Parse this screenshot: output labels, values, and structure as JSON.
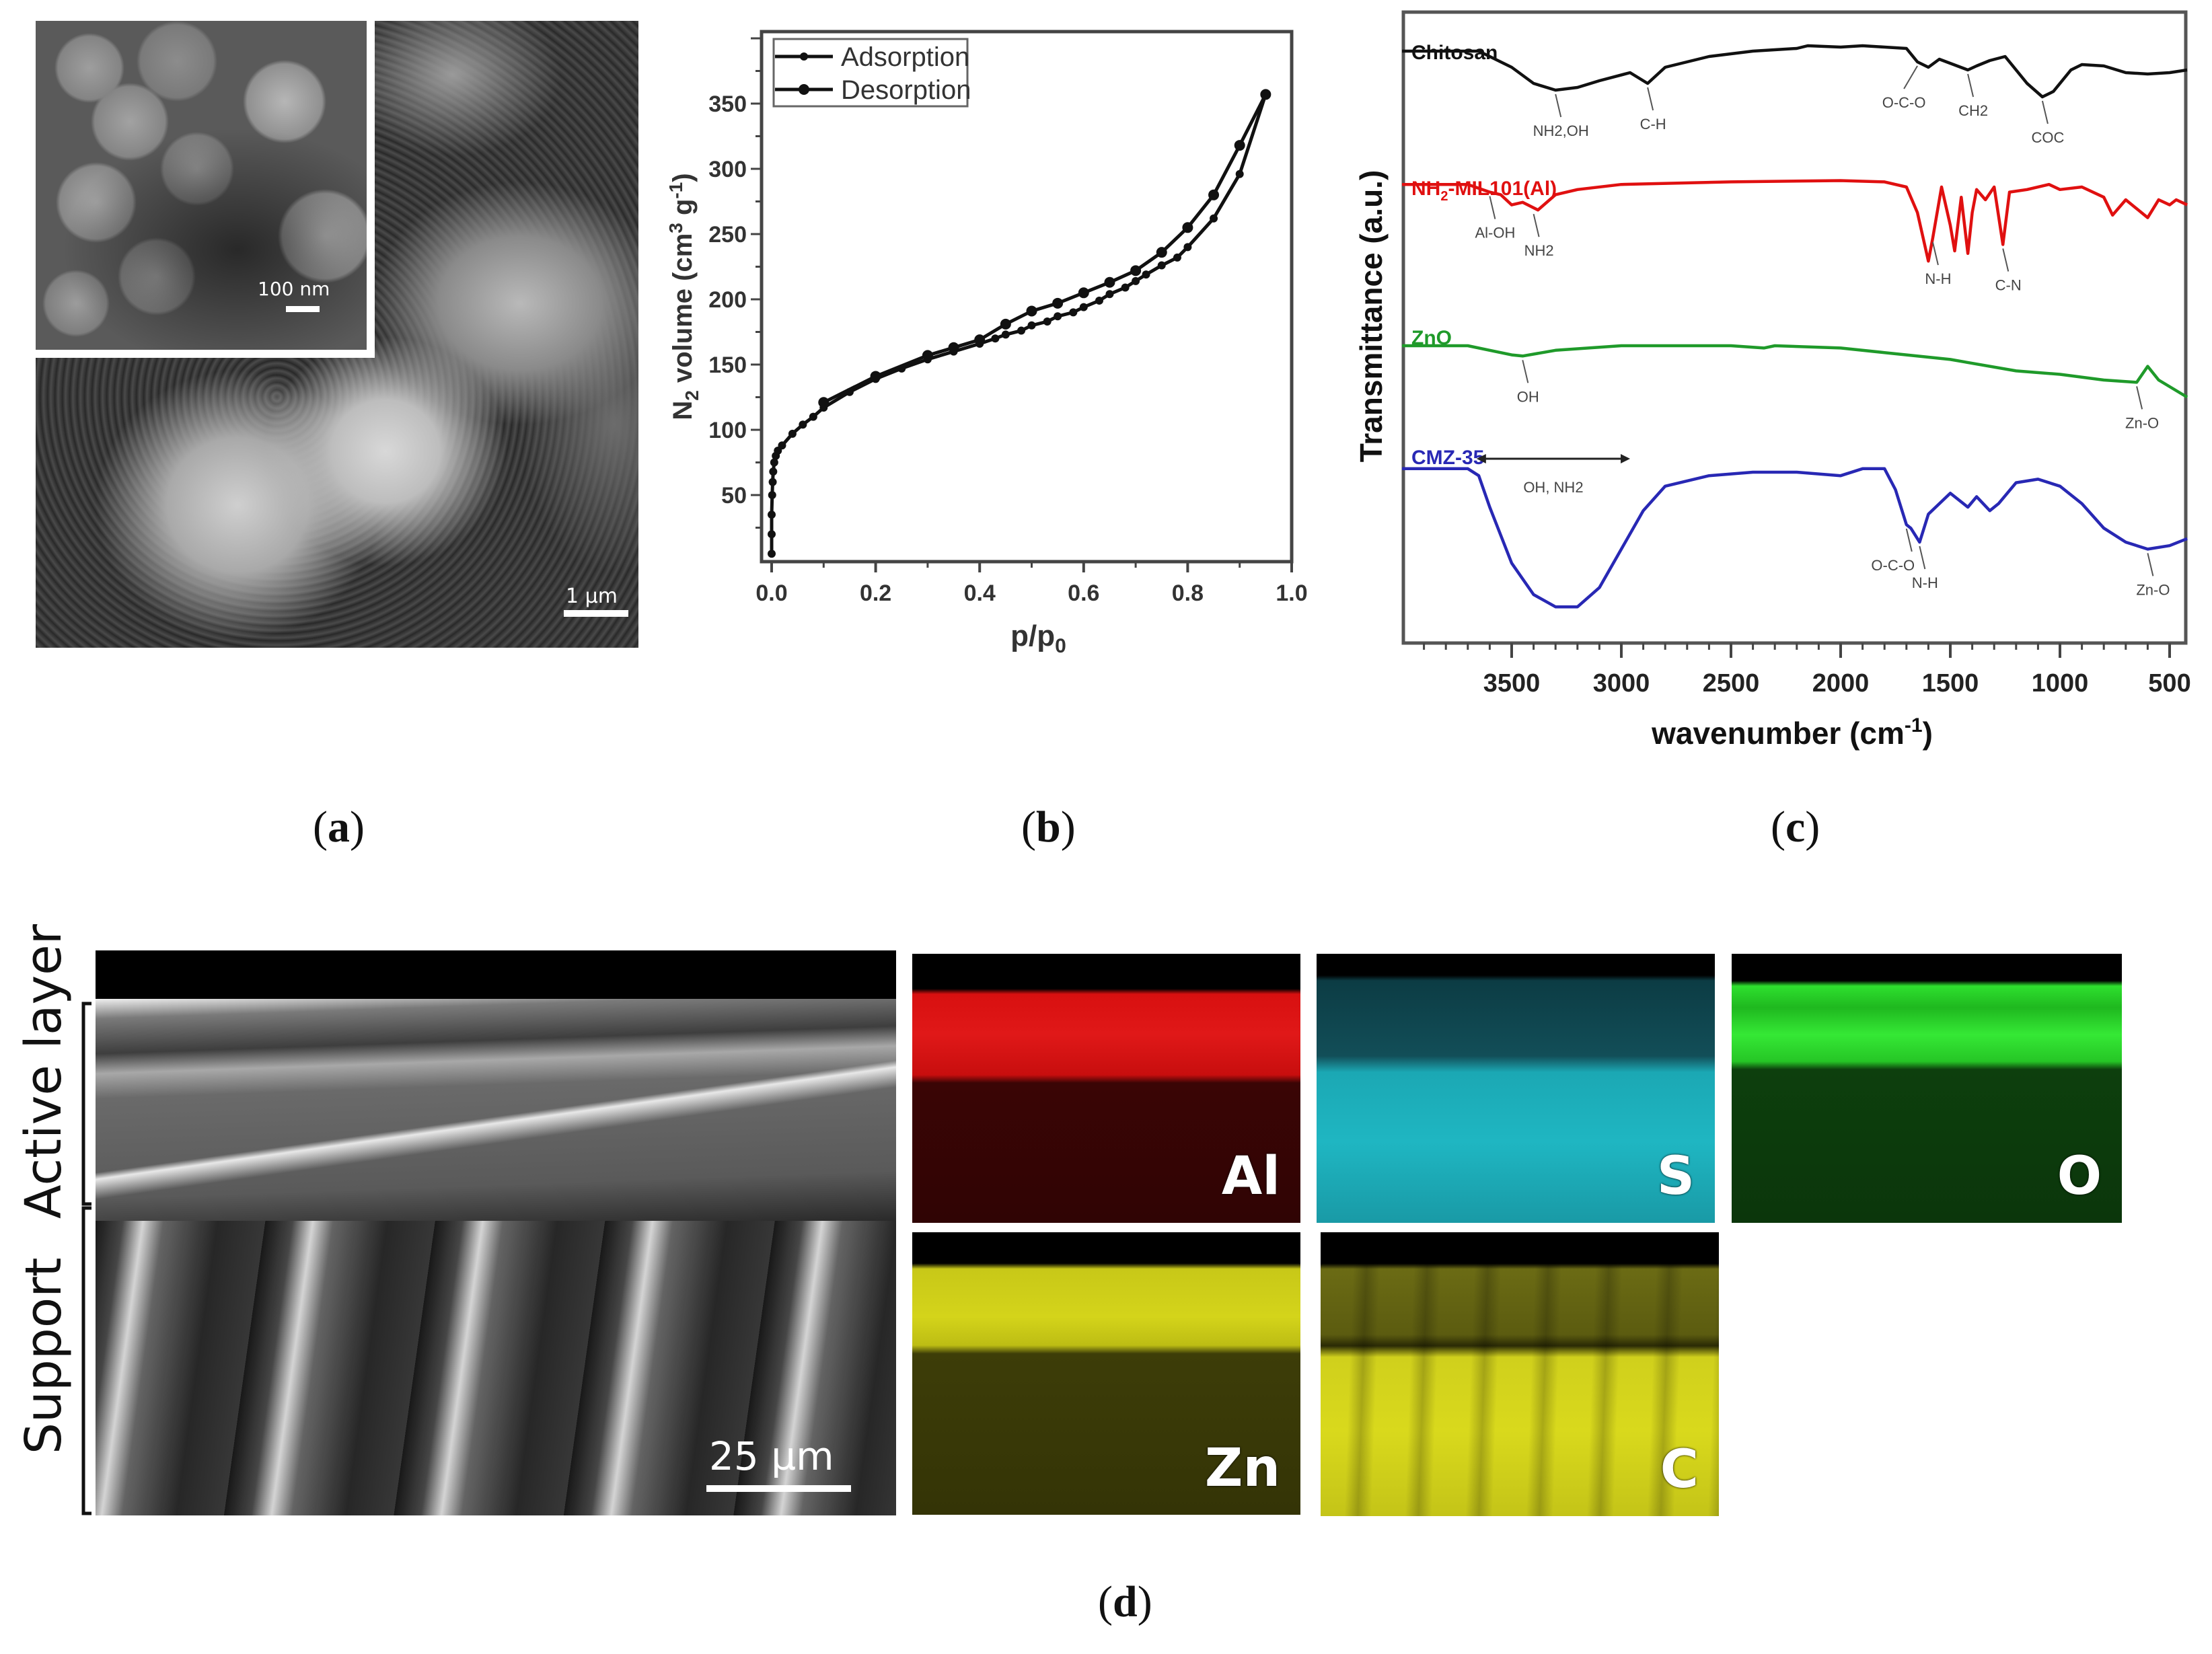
{
  "figure": {
    "captions": {
      "a": {
        "open": "(",
        "letter": "a",
        "close": ")"
      },
      "b": {
        "open": "(",
        "letter": "b",
        "close": ")"
      },
      "c": {
        "open": "(",
        "letter": "c",
        "close": ")"
      },
      "d": {
        "open": "(",
        "letter": "d",
        "close": ")"
      }
    }
  },
  "panel_a": {
    "description": "SEM image of NH2-MIL101(Al) particles with inset",
    "scale_bar_main": "1 µm",
    "scale_bar_inset": "100 nm"
  },
  "panel_d": {
    "sem_scale_bar": "25 µm",
    "bracket_labels": {
      "top": "Active layer",
      "bottom": "Support"
    },
    "edx_maps": [
      {
        "element": "Al",
        "color_top": "#e01010",
        "color_bottom": "#3a0505"
      },
      {
        "element": "S",
        "color_top": "#0f4a52",
        "color_bottom": "#1fb6c2"
      },
      {
        "element": "O",
        "color_top": "#22e022",
        "color_bottom": "#0c3d0c"
      },
      {
        "element": "Zn",
        "color_top": "#d4d418",
        "color_bottom": "#3a3a08"
      },
      {
        "element": "C",
        "color_top": "#6b6b14",
        "color_bottom": "#d9d91c"
      }
    ]
  },
  "chart_data": [
    {
      "type": "line",
      "panel": "b",
      "title": "",
      "xlabel": "p/p0",
      "ylabel": "N2 volume (cm3 g-1)",
      "xlim": [
        0.0,
        1.0
      ],
      "ylim": [
        0,
        405
      ],
      "xticks": [
        "0.0",
        "0.2",
        "0.4",
        "0.6",
        "0.8",
        "1.0"
      ],
      "yticks": [
        "50",
        "100",
        "150",
        "200",
        "250",
        "300",
        "350"
      ],
      "grid": false,
      "legend": {
        "position": "upper left",
        "entries": [
          "Adsorption",
          "Desorption"
        ]
      },
      "series": [
        {
          "name": "Adsorption",
          "marker": "small-dot",
          "x": [
            0.0,
            0.0,
            0.0,
            0.001,
            0.002,
            0.003,
            0.005,
            0.008,
            0.012,
            0.02,
            0.04,
            0.06,
            0.08,
            0.1,
            0.15,
            0.2,
            0.25,
            0.3,
            0.35,
            0.4,
            0.43,
            0.45,
            0.48,
            0.5,
            0.53,
            0.55,
            0.58,
            0.6,
            0.63,
            0.65,
            0.68,
            0.7,
            0.72,
            0.75,
            0.78,
            0.8,
            0.85,
            0.9,
            0.95
          ],
          "y": [
            5,
            20,
            35,
            50,
            60,
            68,
            75,
            80,
            84,
            88,
            97,
            104,
            110,
            117,
            129,
            139,
            147,
            154,
            160,
            166,
            170,
            173,
            176,
            180,
            183,
            187,
            190,
            194,
            199,
            204,
            209,
            214,
            219,
            226,
            232,
            240,
            262,
            296,
            357
          ]
        },
        {
          "name": "Desorption",
          "marker": "large-dot",
          "x": [
            0.1,
            0.2,
            0.3,
            0.35,
            0.4,
            0.45,
            0.5,
            0.55,
            0.6,
            0.65,
            0.7,
            0.75,
            0.8,
            0.85,
            0.9,
            0.95
          ],
          "y": [
            121,
            141,
            157,
            163,
            169,
            181,
            191,
            197,
            205,
            213,
            222,
            236,
            255,
            280,
            318,
            357
          ]
        }
      ]
    },
    {
      "type": "line",
      "panel": "c",
      "title": "",
      "xlabel": "wavenumber (cm-1)",
      "ylabel": "Transmittance (a.u.)",
      "xlim": [
        4000,
        420
      ],
      "x_reversed": true,
      "xticks": [
        "3500",
        "3000",
        "2500",
        "2000",
        "1500",
        "1000",
        "500"
      ],
      "yticks": [],
      "grid": false,
      "legend": {
        "position": "inline labels",
        "entries": [
          "Chitosan",
          "NH2-MIL101(Al)",
          "ZnO",
          "CMZ-35"
        ]
      },
      "series": [
        {
          "name": "Chitosan",
          "color": "#111111",
          "x": [
            4000,
            3650,
            3500,
            3400,
            3300,
            3200,
            3100,
            2960,
            2880,
            2800,
            2600,
            2400,
            2200,
            2150,
            2000,
            1900,
            1800,
            1700,
            1650,
            1600,
            1550,
            1420,
            1380,
            1320,
            1250,
            1150,
            1080,
            1030,
            950,
            900,
            800,
            700,
            600,
            500,
            420
          ],
          "y": [
            82,
            82,
            70,
            58,
            53,
            55,
            60,
            66,
            58,
            70,
            78,
            82,
            84,
            86,
            85,
            86,
            85,
            84,
            74,
            70,
            76,
            68,
            71,
            75,
            78,
            58,
            48,
            52,
            68,
            72,
            71,
            66,
            65,
            66,
            68
          ],
          "annotations": [
            {
              "label": "NH2,OH",
              "x": 3300
            },
            {
              "label": "C-H",
              "x": 2880
            },
            {
              "label": "O-C-O",
              "x": 1650
            },
            {
              "label": "CH2",
              "x": 1420
            },
            {
              "label": "COC",
              "x": 1080
            }
          ]
        },
        {
          "name": "NH2-MIL101(Al)",
          "color": "#e01010",
          "x": [
            4000,
            3700,
            3600,
            3550,
            3500,
            3450,
            3380,
            3300,
            3200,
            3000,
            2500,
            2000,
            1800,
            1700,
            1650,
            1600,
            1580,
            1540,
            1500,
            1480,
            1450,
            1420,
            1400,
            1380,
            1340,
            1300,
            1260,
            1230,
            1150,
            1050,
            1000,
            900,
            800,
            760,
            700,
            600,
            550,
            500,
            470,
            420
          ],
          "y": [
            82,
            82,
            76,
            74,
            66,
            68,
            62,
            74,
            78,
            82,
            84,
            85,
            84,
            80,
            60,
            22,
            40,
            80,
            50,
            30,
            72,
            28,
            60,
            78,
            70,
            80,
            35,
            76,
            78,
            82,
            78,
            80,
            72,
            58,
            70,
            56,
            70,
            66,
            70,
            66
          ],
          "annotations": [
            {
              "label": "Al-OH",
              "x": 3600
            },
            {
              "label": "NH2",
              "x": 3400
            },
            {
              "label": "N-H",
              "x": 1580
            },
            {
              "label": "C-N",
              "x": 1260
            }
          ]
        },
        {
          "name": "ZnO",
          "color": "#1f9a2a",
          "x": [
            4000,
            3700,
            3600,
            3500,
            3450,
            3300,
            3000,
            2500,
            2350,
            2300,
            2000,
            1800,
            1500,
            1200,
            1000,
            800,
            650,
            600,
            550,
            420
          ],
          "y": [
            80,
            80,
            76,
            72,
            71,
            76,
            80,
            80,
            78,
            80,
            78,
            74,
            68,
            58,
            55,
            50,
            48,
            62,
            50,
            35
          ],
          "annotations": [
            {
              "label": "OH",
              "x": 3450
            },
            {
              "label": "Zn-O",
              "x": 650
            }
          ]
        },
        {
          "name": "CMZ-35",
          "color": "#2828b4",
          "x": [
            4000,
            3700,
            3650,
            3600,
            3500,
            3400,
            3300,
            3200,
            3100,
            3000,
            2900,
            2800,
            2600,
            2400,
            2200,
            2000,
            1900,
            1800,
            1750,
            1700,
            1680,
            1640,
            1600,
            1500,
            1420,
            1380,
            1320,
            1280,
            1200,
            1100,
            1000,
            900,
            800,
            700,
            600,
            500,
            420
          ],
          "y": [
            82,
            82,
            78,
            60,
            28,
            10,
            3,
            3,
            14,
            36,
            58,
            72,
            78,
            80,
            80,
            78,
            82,
            82,
            70,
            50,
            48,
            40,
            56,
            68,
            60,
            66,
            58,
            62,
            74,
            76,
            72,
            62,
            48,
            40,
            36,
            38,
            42
          ],
          "annotations": [
            {
              "label": "OH, NH2",
              "x_from": 3660,
              "x_to": 2960,
              "type": "double-arrow"
            },
            {
              "label": "O-C-O",
              "x": 1700
            },
            {
              "label": "N-H",
              "x": 1640
            },
            {
              "label": "Zn-O",
              "x": 600
            }
          ]
        }
      ]
    }
  ]
}
